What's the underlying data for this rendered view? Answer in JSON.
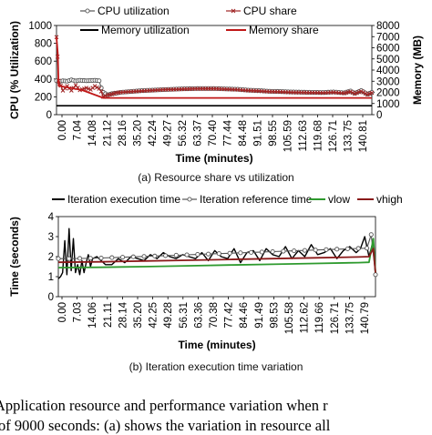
{
  "caption_a": "(a) Resource share vs utilization",
  "caption_b": "(b) Iteration execution time variation",
  "body_line1": "Application resource and performance variation when r",
  "body_line2": "of 9000 seconds: (a) shows the variation in resource all",
  "chart_data": [
    {
      "type": "line",
      "xlabel": "Time (minutes)",
      "ylabel": "CPU (% Utilization)",
      "y2label": "Memory (MB)",
      "ylim": [
        0,
        1000
      ],
      "y2lim": [
        0,
        8000
      ],
      "yticks": [
        "0",
        "200",
        "400",
        "600",
        "800",
        "1000"
      ],
      "y2ticks": [
        "0",
        "1000",
        "2000",
        "3000",
        "4000",
        "5000",
        "6000",
        "7000",
        "8000"
      ],
      "xticks": [
        "0.00",
        "7.04",
        "14.08",
        "21.12",
        "28.16",
        "35.20",
        "42.24",
        "49.27",
        "56.32",
        "63.37",
        "70.40",
        "77.44",
        "84.48",
        "91.51",
        "98.55",
        "105.59",
        "112.63",
        "119.68",
        "126.71",
        "133.75",
        "140.81"
      ],
      "xlim": [
        0,
        148
      ],
      "legend": "top",
      "series": [
        {
          "name": "CPU utilization",
          "color": "#555555",
          "marker": "circle",
          "axis": "left",
          "x": [
            0,
            1,
            3,
            5,
            7,
            9,
            11,
            14,
            16,
            18,
            20,
            21,
            22,
            24,
            26,
            28,
            30,
            35,
            40,
            45,
            50,
            55,
            60,
            65,
            70,
            75,
            80,
            85,
            90,
            95,
            100,
            105,
            110,
            115,
            120,
            125,
            130,
            135,
            138,
            140,
            143,
            146,
            148
          ],
          "y": [
            380,
            370,
            380,
            375,
            390,
            378,
            385,
            380,
            382,
            385,
            380,
            300,
            250,
            220,
            235,
            240,
            250,
            260,
            270,
            275,
            280,
            285,
            290,
            292,
            293,
            292,
            288,
            285,
            275,
            270,
            262,
            260,
            255,
            252,
            250,
            248,
            255,
            245,
            265,
            240,
            270,
            230,
            250
          ]
        },
        {
          "name": "CPU share",
          "color": "#a02525",
          "marker": "x",
          "axis": "left",
          "x": [
            0,
            0.5,
            1,
            3,
            5,
            7,
            9,
            11,
            14,
            16,
            18,
            20,
            21,
            22,
            24,
            26,
            28,
            30,
            35,
            40,
            45,
            50,
            55,
            60,
            65,
            70,
            75,
            80,
            85,
            90,
            95,
            100,
            105,
            110,
            115,
            120,
            125,
            130,
            135,
            138,
            140,
            143,
            146,
            148
          ],
          "y": [
            870,
            650,
            380,
            270,
            320,
            270,
            330,
            275,
            300,
            280,
            320,
            290,
            260,
            200,
            220,
            230,
            245,
            250,
            258,
            265,
            272,
            280,
            283,
            287,
            290,
            291,
            290,
            285,
            280,
            270,
            265,
            258,
            255,
            250,
            248,
            246,
            244,
            250,
            240,
            258,
            235,
            262,
            225,
            245
          ]
        },
        {
          "name": "Memory utilization",
          "color": "#000000",
          "marker": "none",
          "axis": "right",
          "x": [
            0,
            148
          ],
          "y": [
            800,
            800
          ]
        },
        {
          "name": "Memory share",
          "color": "#c01818",
          "marker": "none",
          "axis": "right",
          "x": [
            0,
            0.6,
            1,
            12,
            22,
            148
          ],
          "y": [
            6900,
            5500,
            2600,
            2200,
            1500,
            1500
          ]
        }
      ]
    },
    {
      "type": "line",
      "xlabel": "Time (minutes)",
      "ylabel": "Time (seconds)",
      "ylim": [
        0,
        4
      ],
      "yticks": [
        "0",
        "1",
        "2",
        "3",
        "4"
      ],
      "xticks": [
        "0.00",
        "7.03",
        "14.06",
        "21.11",
        "28.14",
        "35.20",
        "42.25",
        "49.28",
        "56.31",
        "63.36",
        "70.38",
        "77.42",
        "84.46",
        "91.49",
        "98.53",
        "105.58",
        "112.62",
        "119.66",
        "126.71",
        "133.75",
        "140.79"
      ],
      "xlim": [
        0,
        148
      ],
      "legend": "top",
      "series": [
        {
          "name": "Iteration execution time",
          "color": "#000000",
          "marker": "none",
          "x": [
            0,
            1,
            2,
            3,
            4,
            5,
            6,
            7,
            8,
            9,
            10,
            11,
            12,
            13,
            14,
            15,
            16,
            18,
            20,
            22,
            25,
            28,
            31,
            34,
            37,
            40,
            43,
            46,
            49,
            52,
            55,
            58,
            61,
            64,
            67,
            70,
            73,
            76,
            79,
            82,
            85,
            88,
            91,
            94,
            97,
            100,
            103,
            106,
            109,
            112,
            115,
            118,
            121,
            124,
            127,
            130,
            133,
            136,
            139,
            141,
            143,
            145,
            147,
            148
          ],
          "y": [
            0.9,
            1.0,
            1.2,
            2.8,
            1.1,
            3.4,
            1.3,
            2.9,
            1.2,
            1.6,
            1.1,
            1.8,
            1.2,
            1.7,
            2.1,
            1.5,
            1.9,
            2.0,
            1.8,
            1.6,
            1.6,
            1.9,
            1.7,
            2.0,
            1.9,
            1.8,
            2.1,
            1.9,
            2.2,
            2.0,
            1.9,
            2.1,
            2.0,
            1.9,
            2.2,
            1.8,
            2.3,
            2.0,
            1.9,
            2.4,
            1.7,
            2.2,
            2.3,
            1.8,
            2.4,
            2.1,
            2.0,
            2.5,
            1.9,
            2.3,
            2.0,
            2.6,
            2.1,
            2.2,
            2.4,
            1.9,
            2.3,
            2.5,
            2.2,
            2.4,
            3.0,
            2.0,
            2.8,
            1.0
          ]
        },
        {
          "name": "Iteration reference time",
          "color": "#555555",
          "marker": "circle",
          "x": [
            0,
            5,
            10,
            15,
            20,
            25,
            30,
            35,
            40,
            45,
            50,
            55,
            60,
            65,
            70,
            75,
            80,
            85,
            90,
            95,
            100,
            105,
            110,
            115,
            120,
            125,
            130,
            135,
            140,
            144,
            146,
            148
          ],
          "y": [
            1.9,
            1.9,
            1.91,
            1.92,
            1.93,
            1.95,
            1.97,
            1.99,
            2.01,
            2.03,
            2.05,
            2.07,
            2.09,
            2.11,
            2.13,
            2.15,
            2.17,
            2.19,
            2.21,
            2.23,
            2.25,
            2.27,
            2.29,
            2.31,
            2.33,
            2.35,
            2.37,
            2.39,
            2.41,
            2.42,
            3.1,
            1.1
          ]
        },
        {
          "name": "vlow",
          "color": "#2e9a2e",
          "marker": "none",
          "x": [
            0,
            20,
            40,
            60,
            80,
            100,
            120,
            140,
            145,
            147,
            148
          ],
          "y": [
            1.45,
            1.47,
            1.5,
            1.54,
            1.58,
            1.62,
            1.66,
            1.7,
            1.72,
            2.9,
            1.2
          ]
        },
        {
          "name": "vhigh",
          "color": "#8a1a1a",
          "marker": "none",
          "x": [
            0,
            20,
            40,
            60,
            80,
            100,
            120,
            140,
            145,
            147,
            148
          ],
          "y": [
            1.72,
            1.74,
            1.78,
            1.82,
            1.86,
            1.9,
            1.94,
            1.98,
            2.0,
            2.4,
            1.2
          ]
        }
      ]
    }
  ]
}
